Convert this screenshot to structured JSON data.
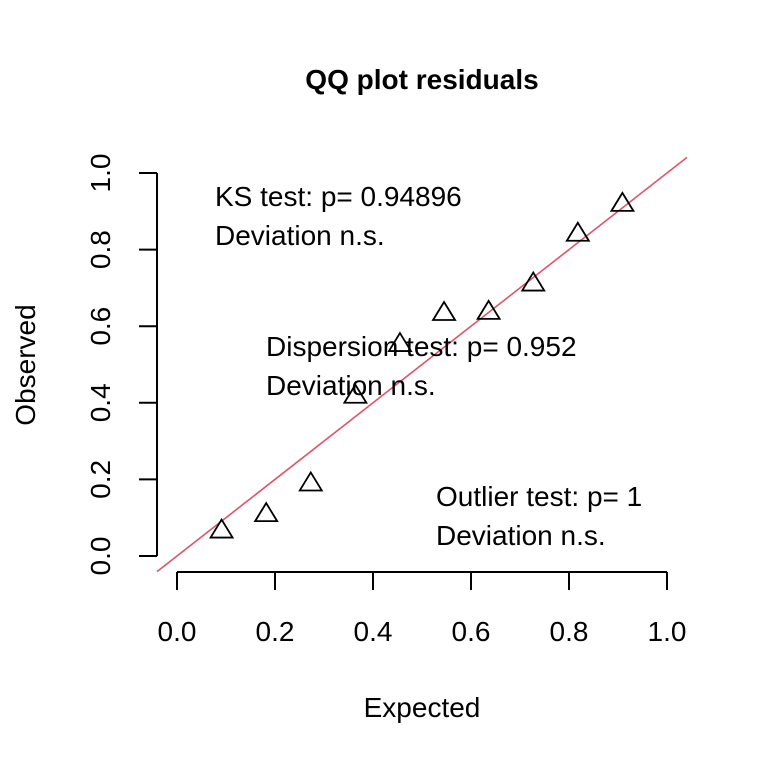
{
  "chart_data": {
    "type": "scatter",
    "title": "QQ plot residuals",
    "xlabel": "Expected",
    "ylabel": "Observed",
    "xlim": [
      0,
      1
    ],
    "ylim": [
      0,
      1
    ],
    "x_ticks": [
      "0.0",
      "0.2",
      "0.4",
      "0.6",
      "0.8",
      "1.0"
    ],
    "y_ticks": [
      "0.0",
      "0.2",
      "0.4",
      "0.6",
      "0.8",
      "1.0"
    ],
    "grid": false,
    "marker": "open-triangle",
    "reference_line": {
      "slope": 1,
      "intercept": 0,
      "color": "#df536b"
    },
    "points": {
      "x": [
        0.091,
        0.182,
        0.273,
        0.364,
        0.455,
        0.545,
        0.636,
        0.727,
        0.818,
        0.909
      ],
      "y": [
        0.069,
        0.112,
        0.192,
        0.421,
        0.556,
        0.637,
        0.64,
        0.714,
        0.844,
        0.922
      ]
    },
    "annotations": [
      {
        "lines": [
          "KS test: p= 0.94896",
          "Deviation  n.s."
        ]
      },
      {
        "lines": [
          "Dispersion test: p= 0.952",
          "Deviation  n.s."
        ]
      },
      {
        "lines": [
          "Outlier test: p= 1",
          "Deviation  n.s."
        ]
      }
    ]
  }
}
